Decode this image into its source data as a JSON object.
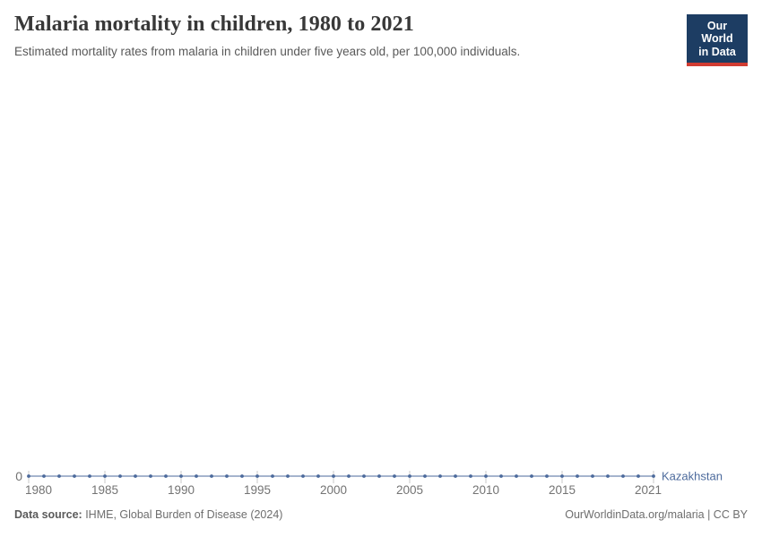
{
  "header": {
    "title": "Malaria mortality in children, 1980 to 2021",
    "subtitle": "Estimated mortality rates from malaria in children under five years old, per 100,000 individuals."
  },
  "logo": {
    "line1": "Our World",
    "line2": "in Data",
    "bg_color": "#1d3d63",
    "accent_color": "#d13c32"
  },
  "chart_data": {
    "type": "line",
    "title": "Malaria mortality in children, 1980 to 2021",
    "entity_label": "Kazakhstan",
    "x": [
      1980,
      1981,
      1982,
      1983,
      1984,
      1985,
      1986,
      1987,
      1988,
      1989,
      1990,
      1991,
      1992,
      1993,
      1994,
      1995,
      1996,
      1997,
      1998,
      1999,
      2000,
      2001,
      2002,
      2003,
      2004,
      2005,
      2006,
      2007,
      2008,
      2009,
      2010,
      2011,
      2012,
      2013,
      2014,
      2015,
      2016,
      2017,
      2018,
      2019,
      2020,
      2021
    ],
    "series": [
      {
        "name": "Kazakhstan",
        "values": [
          0,
          0,
          0,
          0,
          0,
          0,
          0,
          0,
          0,
          0,
          0,
          0,
          0,
          0,
          0,
          0,
          0,
          0,
          0,
          0,
          0,
          0,
          0,
          0,
          0,
          0,
          0,
          0,
          0,
          0,
          0,
          0,
          0,
          0,
          0,
          0,
          0,
          0,
          0,
          0,
          0,
          0
        ]
      }
    ],
    "x_ticks": [
      1980,
      1985,
      1990,
      1995,
      2000,
      2005,
      2010,
      2015,
      2021
    ],
    "x_tick_labels": [
      "1980",
      "1985",
      "1990",
      "1995",
      "2000",
      "2005",
      "2010",
      "2015",
      "2021"
    ],
    "y_tick_labels": [
      "0"
    ],
    "xlabel": "",
    "ylabel": "",
    "xlim": [
      1980,
      2021
    ],
    "ylim": [
      0,
      1
    ],
    "grid": false,
    "legend_position": "end-of-line",
    "line_color": "#4c6a9c",
    "marker_color": "#4c6a9c",
    "tick_text_color": "#737373",
    "tick_mark_color": "#c9c9c9"
  },
  "footer": {
    "source_label": "Data source:",
    "source_text": " IHME, Global Burden of Disease (2024)",
    "credit": "OurWorldinData.org/malaria | CC BY"
  }
}
